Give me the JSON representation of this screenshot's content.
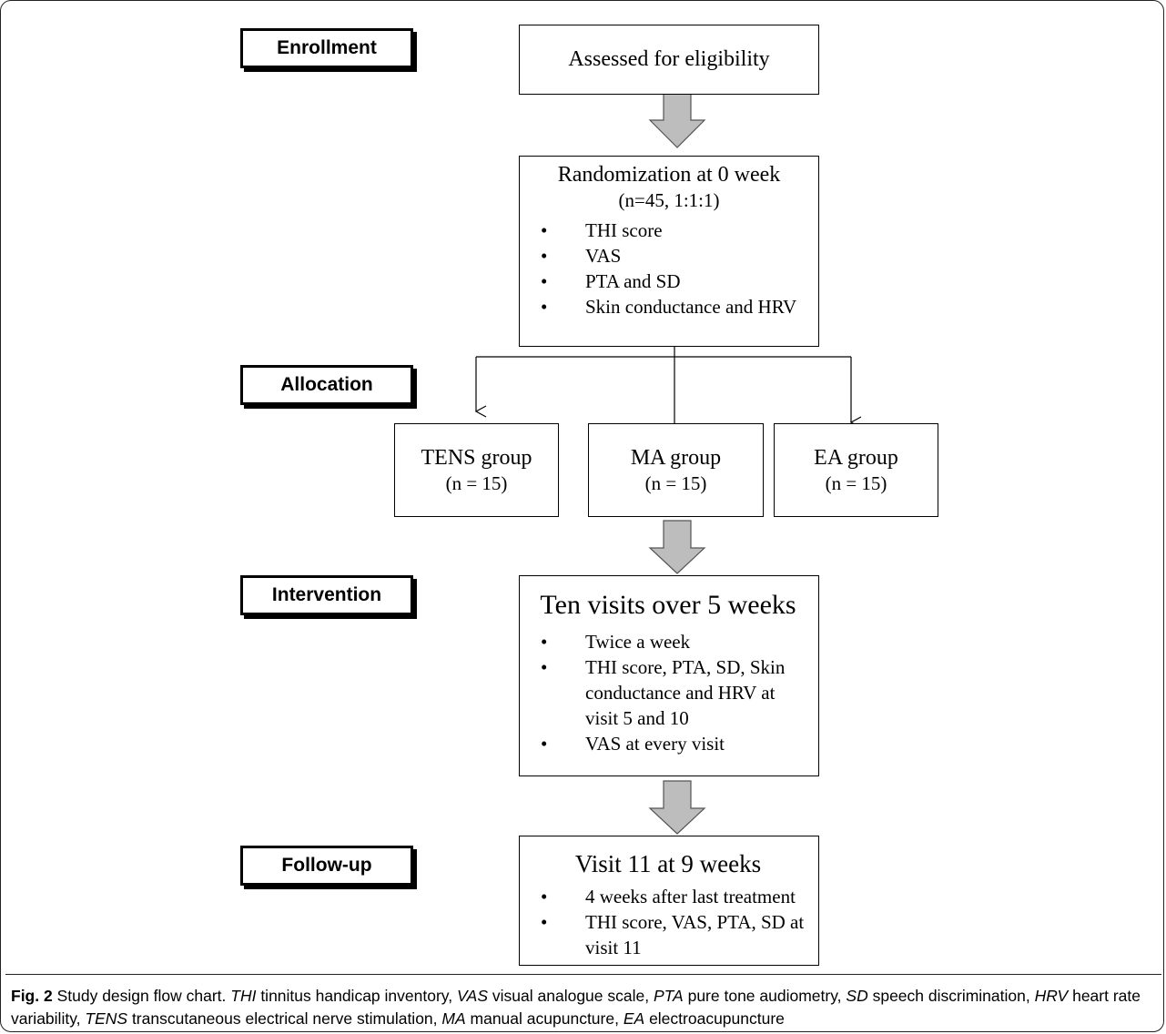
{
  "stages": {
    "enrollment": "Enrollment",
    "allocation": "Allocation",
    "intervention": "Intervention",
    "followup": "Follow-up"
  },
  "boxes": {
    "eligibility": {
      "title": "Assessed for eligibility"
    },
    "randomization": {
      "title": "Randomization at 0 week",
      "subtitle": "(n=45, 1:1:1)",
      "items": [
        "THI score",
        "VAS",
        "PTA and SD",
        "Skin conductance and HRV"
      ]
    },
    "groups": [
      {
        "name": "TENS group",
        "n": "(n = 15)"
      },
      {
        "name": "MA group",
        "n": "(n = 15)"
      },
      {
        "name": "EA group",
        "n": "(n = 15)"
      }
    ],
    "intervention": {
      "title": "Ten visits over 5 weeks",
      "items": [
        "Twice a week",
        "THI score, PTA, SD, Skin conductance and HRV at visit 5 and 10",
        "VAS at every visit"
      ]
    },
    "followup": {
      "title": "Visit 11 at 9 weeks",
      "items": [
        "4 weeks after last treatment",
        "THI score, VAS, PTA, SD at visit 11"
      ]
    }
  },
  "caption": {
    "fig_label": "Fig. 2",
    "title": "Study design flow chart.",
    "abbreviations": [
      {
        "abbr": "THI",
        "def": "tinnitus handicap inventory"
      },
      {
        "abbr": "VAS",
        "def": "visual analogue scale"
      },
      {
        "abbr": "PTA",
        "def": "pure tone audiometry"
      },
      {
        "abbr": "SD",
        "def": "speech discrimination"
      },
      {
        "abbr": "HRV",
        "def": "heart rate variability"
      },
      {
        "abbr": "TENS",
        "def": "transcutaneous electrical nerve stimulation"
      },
      {
        "abbr": "MA",
        "def": "manual acupuncture"
      },
      {
        "abbr": "EA",
        "def": "electroacupuncture"
      }
    ]
  },
  "colors": {
    "block_arrow_fill": "#bdbdbd",
    "border": "#000000"
  }
}
